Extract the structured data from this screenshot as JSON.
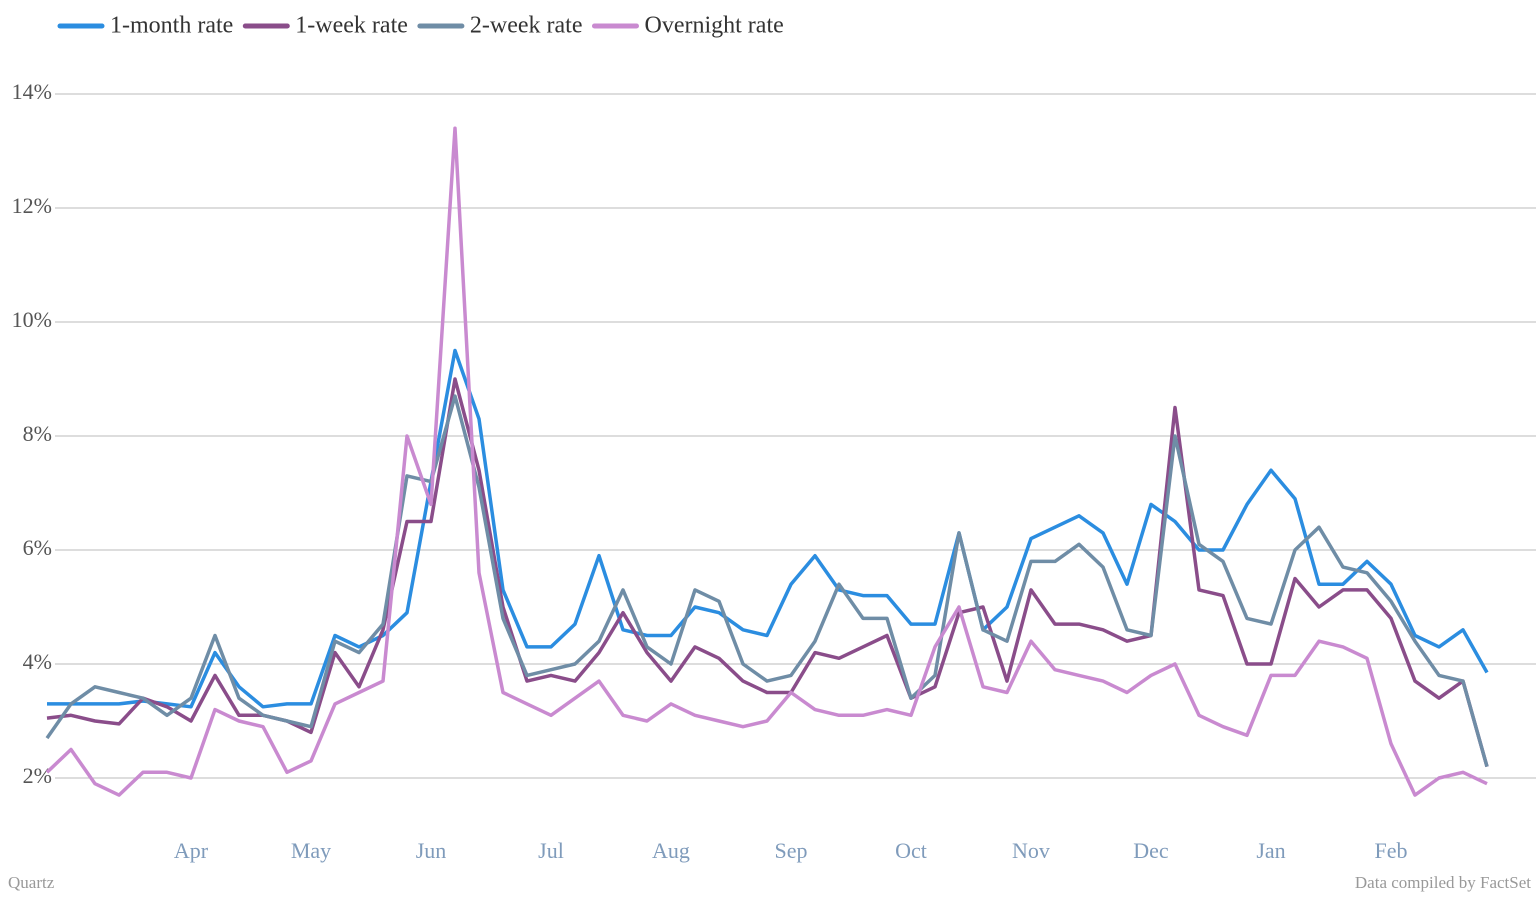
{
  "chart_data": {
    "type": "line",
    "categories": [
      null,
      null,
      null,
      null,
      null,
      null,
      "Apr",
      null,
      null,
      null,
      null,
      "May",
      null,
      null,
      null,
      null,
      "Jun",
      null,
      null,
      null,
      null,
      "Jul",
      null,
      null,
      null,
      null,
      "Aug",
      null,
      null,
      null,
      null,
      "Sep",
      null,
      null,
      null,
      null,
      "Oct",
      null,
      null,
      null,
      null,
      "Nov",
      null,
      null,
      null,
      null,
      "Dec",
      null,
      null,
      null,
      null,
      "Jan",
      null,
      null,
      null,
      null,
      "Feb",
      null,
      null,
      null,
      null
    ],
    "series": [
      {
        "name": "1-month rate",
        "color": "#2b8de0",
        "values": [
          3.3,
          3.3,
          3.3,
          3.3,
          3.35,
          3.3,
          3.25,
          4.2,
          3.6,
          3.25,
          3.3,
          3.3,
          4.5,
          4.3,
          4.5,
          4.9,
          7.2,
          9.5,
          8.3,
          5.3,
          4.3,
          4.3,
          4.7,
          5.9,
          4.6,
          4.5,
          4.5,
          5.0,
          4.9,
          4.6,
          4.5,
          5.4,
          5.9,
          5.3,
          5.2,
          5.2,
          4.7,
          4.7,
          6.3,
          4.6,
          5.0,
          6.2,
          6.4,
          6.6,
          6.3,
          5.4,
          6.8,
          6.5,
          6.0,
          6.0,
          6.8,
          7.4,
          6.9,
          5.4,
          5.4,
          5.8,
          5.4,
          4.5,
          4.3,
          4.6,
          3.85
        ]
      },
      {
        "name": "1-week rate",
        "color": "#8a4d8a",
        "values": [
          3.05,
          3.1,
          3.0,
          2.95,
          3.4,
          3.25,
          3.0,
          3.8,
          3.1,
          3.1,
          3.0,
          2.8,
          4.2,
          3.6,
          4.6,
          6.5,
          6.5,
          9.0,
          7.4,
          5.0,
          3.7,
          3.8,
          3.7,
          4.2,
          4.9,
          4.2,
          3.7,
          4.3,
          4.1,
          3.7,
          3.5,
          3.5,
          4.2,
          4.1,
          4.3,
          4.5,
          3.4,
          3.6,
          4.9,
          5.0,
          3.7,
          5.3,
          4.7,
          4.7,
          4.6,
          4.4,
          4.5,
          8.5,
          5.3,
          5.2,
          4.0,
          4.0,
          5.5,
          5.0,
          5.3,
          5.3,
          4.8,
          3.7,
          3.4,
          3.7,
          2.2
        ]
      },
      {
        "name": "2-week rate",
        "color": "#6f8da6",
        "values": [
          2.7,
          3.3,
          3.6,
          3.5,
          3.4,
          3.1,
          3.4,
          4.5,
          3.4,
          3.1,
          3.0,
          2.9,
          4.4,
          4.2,
          4.7,
          7.3,
          7.2,
          8.7,
          7.1,
          4.8,
          3.8,
          3.9,
          4.0,
          4.4,
          5.3,
          4.3,
          4.0,
          5.3,
          5.1,
          4.0,
          3.7,
          3.8,
          4.4,
          5.4,
          4.8,
          4.8,
          3.4,
          3.8,
          6.3,
          4.6,
          4.4,
          5.8,
          5.8,
          6.1,
          5.7,
          4.6,
          4.5,
          8.0,
          6.1,
          5.8,
          4.8,
          4.7,
          6.0,
          6.4,
          5.7,
          5.6,
          5.1,
          4.4,
          3.8,
          3.7,
          2.2
        ]
      },
      {
        "name": "Overnight rate",
        "color": "#c98ad0",
        "values": [
          2.1,
          2.5,
          1.9,
          1.7,
          2.1,
          2.1,
          2.0,
          3.2,
          3.0,
          2.9,
          2.1,
          2.3,
          3.3,
          3.5,
          3.7,
          8.0,
          6.8,
          13.4,
          5.6,
          3.5,
          3.3,
          3.1,
          3.4,
          3.7,
          3.1,
          3.0,
          3.3,
          3.1,
          3.0,
          2.9,
          3.0,
          3.5,
          3.2,
          3.1,
          3.1,
          3.2,
          3.1,
          4.3,
          5.0,
          3.6,
          3.5,
          4.4,
          3.9,
          3.8,
          3.7,
          3.5,
          3.8,
          4.0,
          3.1,
          2.9,
          2.75,
          3.8,
          3.8,
          4.4,
          4.3,
          4.1,
          2.6,
          1.7,
          2.0,
          2.1,
          1.9
        ]
      }
    ],
    "ylim": [
      1,
      14
    ],
    "yticks": [
      {
        "value": 2,
        "label": "2%"
      },
      {
        "value": 4,
        "label": "4%"
      },
      {
        "value": 6,
        "label": "6%"
      },
      {
        "value": 8,
        "label": "8%"
      },
      {
        "value": 10,
        "label": "10%"
      },
      {
        "value": 12,
        "label": "12%"
      },
      {
        "value": 14,
        "label": "14%"
      }
    ],
    "grid": true,
    "legend": "top",
    "source_left": "Quartz",
    "source_right": "Data compiled by FactSet"
  }
}
